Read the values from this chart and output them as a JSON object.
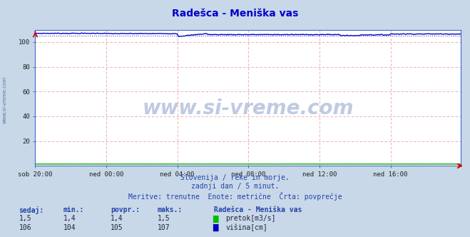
{
  "title": "Radešca - Meniška vas",
  "title_color": "#0000cc",
  "bg_color": "#c8d8e8",
  "plot_bg_color": "#ffffff",
  "grid_color": "#e8a0a0",
  "xlabel": "",
  "ylabel": "",
  "ylim": [
    0,
    110
  ],
  "yticks": [
    20,
    40,
    60,
    80,
    100
  ],
  "x_labels": [
    "sob 20:00",
    "ned 00:00",
    "ned 04:00",
    "ned 08:00",
    "ned 12:00",
    "ned 16:00"
  ],
  "x_tick_positions": [
    0,
    72,
    144,
    216,
    288,
    360
  ],
  "total_points": 432,
  "watermark": "www.si-vreme.com",
  "watermark_color": "#3050a0",
  "watermark_alpha": 0.3,
  "subtitle1": "Slovenija / reke in morje.",
  "subtitle2": "zadnji dan / 5 minut.",
  "subtitle3": "Meritve: trenutne  Enote: metrične  Črta: povprečje",
  "subtitle_color": "#2244aa",
  "legend_title": "Radešca - Meniška vas",
  "legend_color1": "#00bb00",
  "legend_label1": "pretok[m3/s]",
  "legend_color2": "#0000bb",
  "legend_label2": "višina[cm]",
  "stats_labels": [
    "sedaj:",
    "min.:",
    "povpr.:",
    "maks.:"
  ],
  "stats_pretok": [
    "1,5",
    "1,4",
    "1,4",
    "1,5"
  ],
  "stats_visina": [
    "106",
    "104",
    "105",
    "107"
  ],
  "axis_color": "#4466cc",
  "arrow_color": "#cc0000",
  "line_color_pretok": "#00aa00",
  "line_color_visina": "#0000cc",
  "avg_line_color": "#4444cc",
  "sidebar_text": "www.si-vreme.com",
  "sidebar_color": "#3a5a8a"
}
